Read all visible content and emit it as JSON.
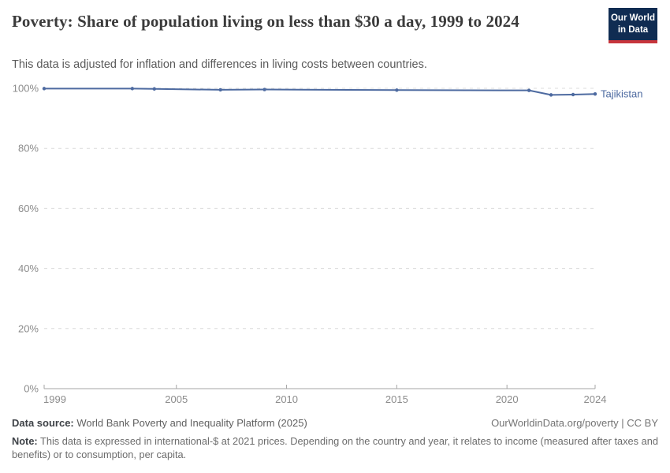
{
  "header": {
    "title": "Poverty: Share of population living on less than $30 a day, 1999 to 2024",
    "subtitle": "This data is adjusted for inflation and differences in living costs between countries.",
    "logo": {
      "line1": "Our World",
      "line2": "in Data",
      "bg_color": "#102c52",
      "accent_color": "#c7353c"
    }
  },
  "chart_data": {
    "type": "line",
    "title": "Poverty: Share of population living on less than $30 a day, 1999 to 2024",
    "xlabel": "",
    "ylabel": "",
    "xlim": [
      1999,
      2024
    ],
    "ylim": [
      0,
      100
    ],
    "x_ticks": [
      1999,
      2005,
      2010,
      2015,
      2020,
      2024
    ],
    "y_ticks": [
      0,
      20,
      40,
      60,
      80,
      100
    ],
    "y_tick_labels": [
      "0%",
      "20%",
      "40%",
      "60%",
      "80%",
      "100%"
    ],
    "grid": "horizontal-dashed",
    "legend_position": "end-of-line-label",
    "series": [
      {
        "name": "Tajikistan",
        "color": "#4d6aa0",
        "x": [
          1999,
          2003,
          2004,
          2007,
          2009,
          2015,
          2021,
          2022,
          2023,
          2024
        ],
        "values": [
          99.9,
          99.9,
          99.8,
          99.5,
          99.6,
          99.4,
          99.3,
          97.8,
          97.9,
          98.1
        ]
      }
    ]
  },
  "footer": {
    "source_label": "Data source:",
    "source_text": "World Bank Poverty and Inequality Platform (2025)",
    "credit": "OurWorldinData.org/poverty | CC BY",
    "note_label": "Note:",
    "note_text": "This data is expressed in international-$ at 2021 prices. Depending on the country and year, it relates to income (measured after taxes and benefits) or to consumption, per capita."
  }
}
